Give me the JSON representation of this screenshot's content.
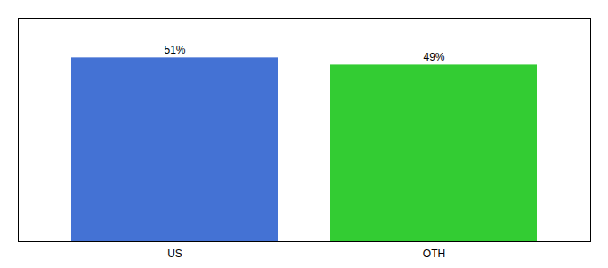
{
  "chart_data": {
    "type": "bar",
    "categories": [
      "US",
      "OTH"
    ],
    "values": [
      51,
      49
    ],
    "value_labels": [
      "51%",
      "49%"
    ],
    "colors": [
      "#4472d4",
      "#33cc33"
    ],
    "ylim": [
      0,
      62
    ],
    "data_labels": true,
    "tick_labels": "x",
    "grid": false
  }
}
